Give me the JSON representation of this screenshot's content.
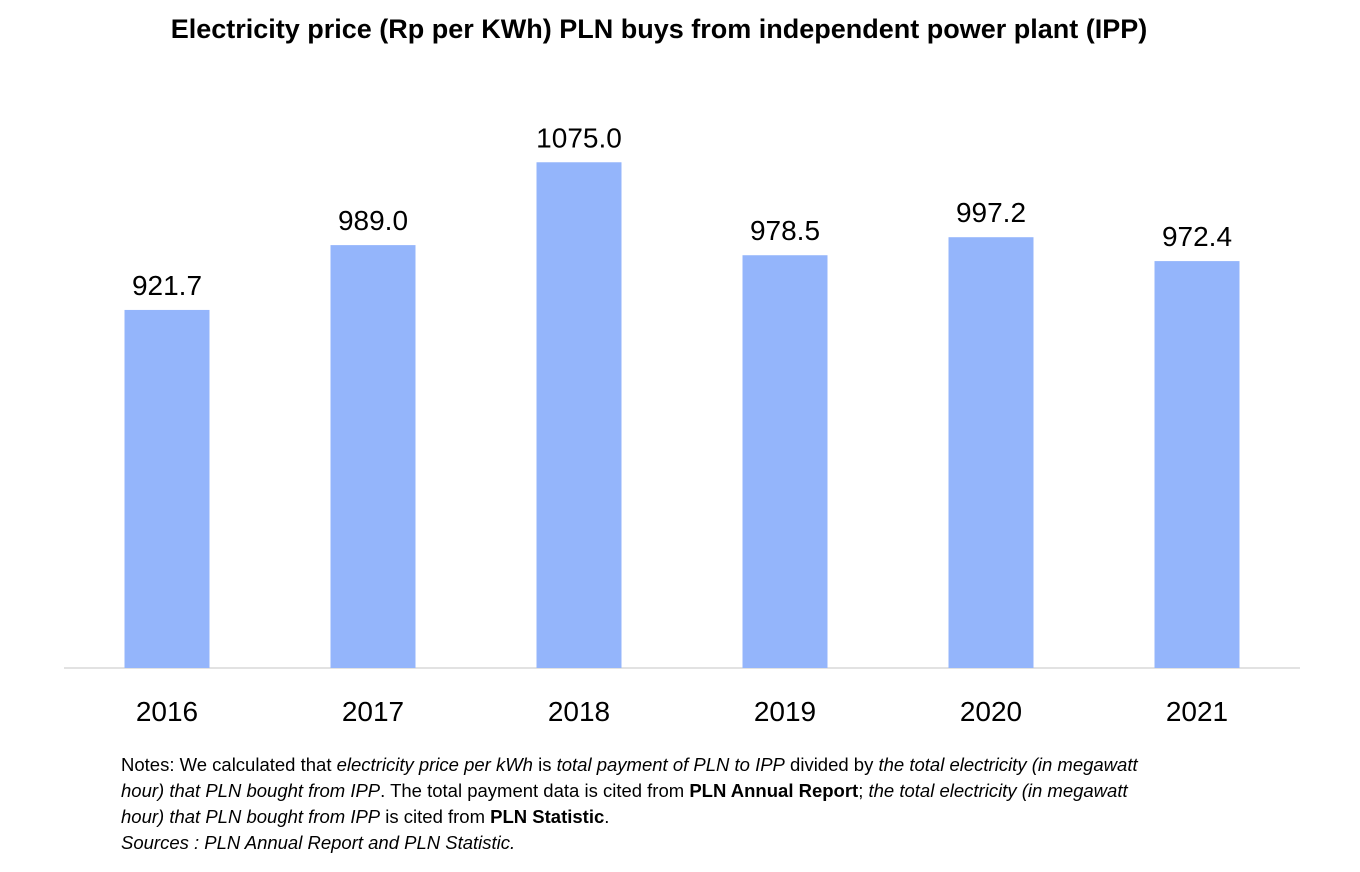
{
  "chart_data": {
    "type": "bar",
    "title": "Electricity price (Rp per KWh) PLN buys from independent power plant (IPP)",
    "categories": [
      "2016",
      "2017",
      "2018",
      "2019",
      "2020",
      "2021"
    ],
    "values": [
      921.7,
      989.0,
      1075.0,
      978.5,
      997.2,
      972.4
    ],
    "data_labels": [
      "921.7",
      "989.0",
      "1075.0",
      "978.5",
      "997.2",
      "972.4"
    ],
    "xlabel": "",
    "ylabel": "",
    "ylim": [
      550,
      1095
    ],
    "grid": false,
    "legend": "none",
    "bar_color": "#94b5fb",
    "axis_color": "#d9d9d9"
  },
  "notes": {
    "l1_a": "Notes: We calculated that ",
    "l1_b": "electricity price per kWh",
    "l1_c": " is ",
    "l1_d": "total payment of PLN to IPP",
    "l1_e": " divided by ",
    "l1_f": "the total electricity (in megawatt",
    "l2_a": "hour) that PLN bought from IPP",
    "l2_b": ". The total payment data is cited from ",
    "l2_c": "PLN Annual Report",
    "l2_d": "; ",
    "l2_e": "the total electricity (in megawatt",
    "l3_a": "hour) that PLN bought from IPP",
    "l3_b": " is cited from ",
    "l3_c": "PLN Statistic",
    "l3_d": ".",
    "sources": "Sources : PLN Annual Report and PLN Statistic."
  }
}
